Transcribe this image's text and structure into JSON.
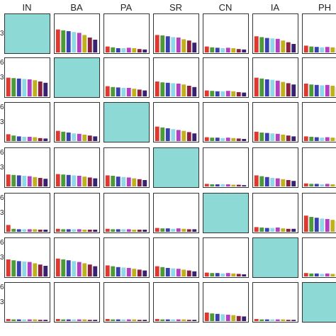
{
  "chart_data": {
    "type": "bar",
    "layout": "pairwise matrix of small bar charts",
    "columns": [
      "IN",
      "BA",
      "PA",
      "SR",
      "CN",
      "IA",
      "PH"
    ],
    "rows": 7,
    "y_ticks": [
      "",
      "3"
    ],
    "y_ticks_alt": [
      "6",
      "3"
    ],
    "ylim": [
      0,
      8
    ],
    "grid": false,
    "diagonal_fill": "#8dd9d6",
    "bar_colors": [
      "#e0382f",
      "#4e9a3a",
      "#3a3fae",
      "#8fd8e8",
      "#b53ec0",
      "#bfb020",
      "#8a2040",
      "#3a2070"
    ],
    "cells": [
      [
        null,
        [
          5.4,
          5.2,
          5.0,
          4.8,
          4.6,
          4.1,
          3.5,
          3.0
        ],
        [
          1.4,
          1.2,
          1.0,
          1.0,
          1.1,
          1.0,
          0.8,
          0.7
        ],
        [
          4.1,
          4.0,
          3.8,
          3.6,
          3.5,
          3.1,
          2.8,
          2.3
        ],
        [
          1.4,
          1.2,
          1.1,
          1.0,
          1.1,
          1.0,
          0.8,
          0.7
        ],
        [
          3.8,
          3.6,
          3.4,
          3.3,
          3.2,
          2.8,
          2.4,
          2.0
        ],
        [
          1.6,
          1.4,
          1.3,
          1.2,
          1.3,
          1.2,
          1.0,
          0.9
        ]
      ],
      [
        [
          4.4,
          4.3,
          4.2,
          4.1,
          4.0,
          3.8,
          3.5,
          3.2
        ],
        null,
        [
          2.4,
          2.2,
          2.1,
          2.0,
          2.0,
          1.8,
          1.6,
          1.4
        ],
        [
          3.5,
          3.3,
          3.2,
          3.1,
          3.0,
          2.8,
          2.5,
          2.2
        ],
        [
          1.4,
          1.3,
          1.2,
          1.2,
          1.3,
          1.2,
          1.0,
          0.9
        ],
        [
          4.4,
          4.2,
          4.0,
          3.9,
          3.7,
          3.4,
          3.1,
          2.8
        ],
        [
          3.0,
          2.8,
          2.7,
          2.6,
          2.7,
          2.5,
          2.2,
          2.0
        ]
      ],
      [
        [
          1.6,
          1.3,
          1.1,
          1.0,
          1.0,
          0.9,
          0.7,
          0.6
        ],
        [
          2.4,
          2.2,
          2.0,
          1.8,
          1.7,
          1.5,
          1.3,
          1.1
        ],
        null,
        [
          3.4,
          3.2,
          3.0,
          2.8,
          2.6,
          2.4,
          2.1,
          1.8
        ],
        [
          0.9,
          0.8,
          0.8,
          0.7,
          0.8,
          0.7,
          0.6,
          0.5
        ],
        [
          2.2,
          2.0,
          1.9,
          1.8,
          1.7,
          1.5,
          1.3,
          1.1
        ],
        [
          1.1,
          1.0,
          0.9,
          0.8,
          0.9,
          0.8,
          0.7,
          0.6
        ]
      ],
      [
        [
          2.8,
          2.7,
          2.6,
          2.5,
          2.4,
          2.2,
          2.0,
          1.8
        ],
        [
          2.9,
          2.8,
          2.7,
          2.6,
          2.5,
          2.3,
          2.1,
          1.9
        ],
        [
          2.6,
          2.5,
          2.3,
          2.2,
          2.1,
          1.9,
          1.7,
          1.5
        ],
        null,
        [
          0.6,
          0.5,
          0.5,
          0.5,
          0.5,
          0.4,
          0.4,
          0.3
        ],
        [
          2.6,
          2.4,
          2.2,
          2.0,
          1.9,
          1.7,
          1.5,
          1.3
        ],
        [
          0.7,
          0.6,
          0.6,
          0.5,
          0.6,
          0.5,
          0.4,
          0.4
        ]
      ],
      [
        [
          1.6,
          0.7,
          0.6,
          0.6,
          0.6,
          0.6,
          0.5,
          0.5
        ],
        [
          0.7,
          0.6,
          0.6,
          0.6,
          0.6,
          0.5,
          0.5,
          0.5
        ],
        [
          0.7,
          0.6,
          0.6,
          0.6,
          0.6,
          0.5,
          0.5,
          0.5
        ],
        [
          0.9,
          0.8,
          0.8,
          0.7,
          0.8,
          0.7,
          0.6,
          0.6
        ],
        null,
        [
          1.1,
          1.0,
          0.9,
          0.9,
          1.0,
          0.8,
          0.7,
          0.7
        ],
        [
          3.8,
          3.5,
          3.3,
          3.1,
          3.0,
          2.8,
          2.5,
          2.2
        ]
      ],
      [
        [
          4.0,
          3.8,
          3.6,
          3.5,
          3.4,
          3.1,
          2.8,
          2.5
        ],
        [
          4.2,
          4.0,
          3.8,
          3.6,
          3.4,
          3.1,
          2.8,
          2.4
        ],
        [
          2.6,
          2.4,
          2.2,
          2.1,
          2.0,
          1.8,
          1.6,
          1.4
        ],
        [
          2.4,
          2.2,
          2.0,
          1.9,
          1.8,
          1.6,
          1.4,
          1.2
        ],
        [
          0.9,
          0.8,
          0.8,
          0.7,
          0.8,
          0.7,
          0.6,
          0.5
        ],
        null,
        [
          0.8,
          0.7,
          0.7,
          0.6,
          0.7,
          0.6,
          0.5,
          0.5
        ]
      ],
      [
        [
          0.5,
          0.4,
          0.4,
          0.4,
          0.4,
          0.4,
          0.3,
          0.3
        ],
        [
          0.5,
          0.4,
          0.4,
          0.4,
          0.4,
          0.4,
          0.3,
          0.3
        ],
        [
          0.5,
          0.4,
          0.4,
          0.4,
          0.4,
          0.4,
          0.3,
          0.3
        ],
        [
          0.5,
          0.4,
          0.4,
          0.4,
          0.4,
          0.4,
          0.3,
          0.3
        ],
        [
          2.0,
          1.8,
          1.7,
          1.6,
          1.5,
          1.4,
          1.2,
          1.1
        ],
        [
          0.5,
          0.4,
          0.4,
          0.4,
          0.4,
          0.4,
          0.3,
          0.3
        ],
        null
      ]
    ],
    "row_tick_labels": [
      [
        "",
        "3"
      ],
      [
        "6",
        "3"
      ],
      [
        "6",
        "3"
      ],
      [
        "6",
        "3"
      ],
      [
        "6",
        "3"
      ],
      [
        "6",
        "3"
      ],
      [
        "6",
        "3"
      ]
    ]
  }
}
